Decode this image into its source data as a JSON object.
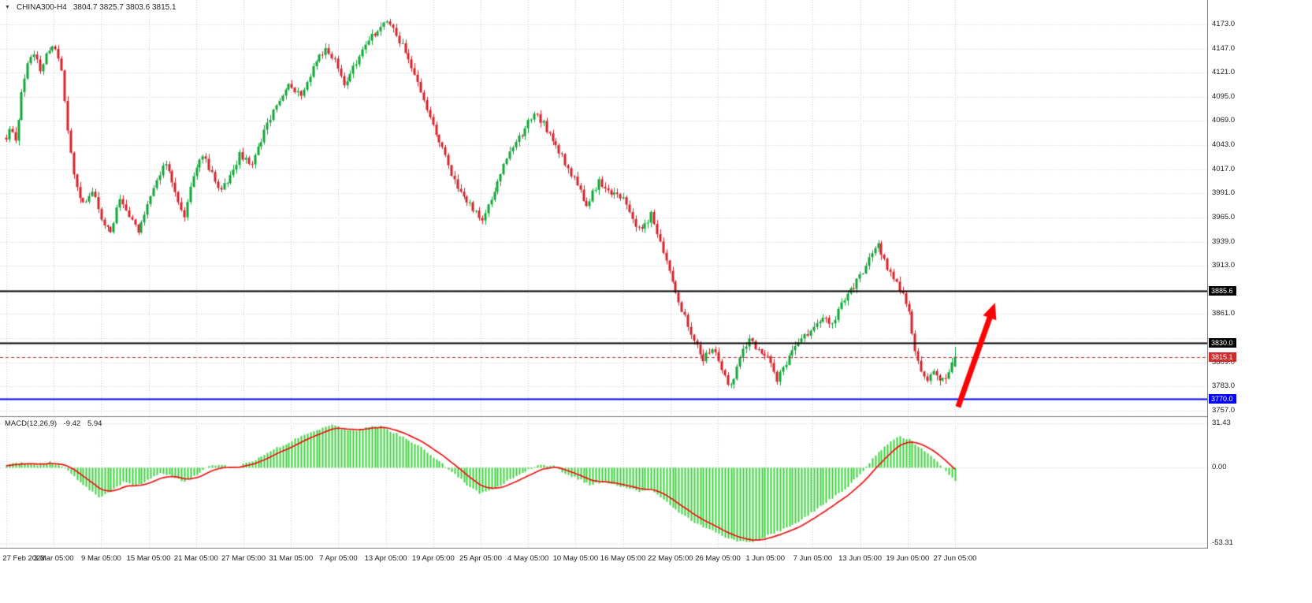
{
  "header": {
    "symbol": "CHINA300-H4",
    "ohlc": "3804.7 3825.7 3803.6 3815.1",
    "dropdown_icon": "▼"
  },
  "macd_panel": {
    "label": "MACD(12,26,9)",
    "main_value": "-9.42",
    "signal_value": "5.94"
  },
  "chart_data": [
    {
      "type": "candlestick",
      "title": "CHINA300-H4",
      "timeframe": "H4",
      "bars": 310,
      "up_color": "#12a538",
      "down_color": "#d4232b",
      "price_axis": {
        "top": 4199.3,
        "bottom": 3751.0,
        "first_gridline": 4173.0,
        "step": 26.0,
        "gridline_count": 17,
        "labels": [
          4173.0,
          4147.0,
          4121.0,
          4095.0,
          4069.0,
          4043.0,
          4017.0,
          3991.0,
          3965.0,
          3939.0,
          3913.0,
          3861.0,
          3809.0,
          3783.0,
          3757.0
        ]
      },
      "time_labels": [
        "27 Feb 2023",
        "3 Mar 05:00",
        "9 Mar 05:00",
        "15 Mar 05:00",
        "21 Mar 05:00",
        "27 Mar 05:00",
        "31 Mar 05:00",
        "7 Apr 05:00",
        "13 Apr 05:00",
        "19 Apr 05:00",
        "25 Apr 05:00",
        "4 May 05:00",
        "10 May 05:00",
        "16 May 05:00",
        "22 May 05:00",
        "26 May 05:00",
        "1 Jun 05:00",
        "7 Jun 05:00",
        "13 Jun 05:00",
        "19 Jun 05:00",
        "27 Jun 05:00"
      ],
      "close_path": [
        [
          0,
          4052
        ],
        [
          1,
          4062
        ],
        [
          3,
          4046
        ],
        [
          5,
          4098
        ],
        [
          7,
          4128
        ],
        [
          9,
          4142
        ],
        [
          11,
          4124
        ],
        [
          13,
          4140
        ],
        [
          16,
          4150
        ],
        [
          18,
          4124
        ],
        [
          20,
          4062
        ],
        [
          22,
          4008
        ],
        [
          25,
          3978
        ],
        [
          28,
          3996
        ],
        [
          31,
          3962
        ],
        [
          34,
          3948
        ],
        [
          37,
          3988
        ],
        [
          40,
          3968
        ],
        [
          43,
          3950
        ],
        [
          46,
          3980
        ],
        [
          49,
          4006
        ],
        [
          52,
          4024
        ],
        [
          55,
          3992
        ],
        [
          58,
          3964
        ],
        [
          61,
          4012
        ],
        [
          64,
          4034
        ],
        [
          67,
          4012
        ],
        [
          70,
          3994
        ],
        [
          73,
          4010
        ],
        [
          76,
          4032
        ],
        [
          80,
          4024
        ],
        [
          84,
          4058
        ],
        [
          88,
          4086
        ],
        [
          92,
          4106
        ],
        [
          96,
          4096
        ],
        [
          100,
          4126
        ],
        [
          104,
          4148
        ],
        [
          107,
          4136
        ],
        [
          110,
          4108
        ],
        [
          113,
          4126
        ],
        [
          117,
          4154
        ],
        [
          121,
          4166
        ],
        [
          124,
          4178
        ],
        [
          127,
          4162
        ],
        [
          130,
          4144
        ],
        [
          133,
          4118
        ],
        [
          136,
          4094
        ],
        [
          139,
          4062
        ],
        [
          142,
          4040
        ],
        [
          145,
          4012
        ],
        [
          148,
          3992
        ],
        [
          151,
          3978
        ],
        [
          155,
          3960
        ],
        [
          158,
          3986
        ],
        [
          161,
          4012
        ],
        [
          164,
          4036
        ],
        [
          168,
          4056
        ],
        [
          172,
          4078
        ],
        [
          175,
          4066
        ],
        [
          178,
          4048
        ],
        [
          182,
          4024
        ],
        [
          186,
          4000
        ],
        [
          189,
          3978
        ],
        [
          193,
          4004
        ],
        [
          197,
          3990
        ],
        [
          201,
          3986
        ],
        [
          204,
          3962
        ],
        [
          207,
          3950
        ],
        [
          210,
          3968
        ],
        [
          213,
          3938
        ],
        [
          216,
          3906
        ],
        [
          218,
          3882
        ],
        [
          221,
          3858
        ],
        [
          224,
          3832
        ],
        [
          227,
          3812
        ],
        [
          230,
          3826
        ],
        [
          233,
          3798
        ],
        [
          236,
          3782
        ],
        [
          239,
          3814
        ],
        [
          242,
          3834
        ],
        [
          245,
          3822
        ],
        [
          248,
          3816
        ],
        [
          251,
          3790
        ],
        [
          254,
          3808
        ],
        [
          257,
          3826
        ],
        [
          260,
          3838
        ],
        [
          263,
          3844
        ],
        [
          266,
          3858
        ],
        [
          269,
          3850
        ],
        [
          272,
          3872
        ],
        [
          275,
          3886
        ],
        [
          279,
          3908
        ],
        [
          282,
          3928
        ],
        [
          284,
          3936
        ],
        [
          286,
          3918
        ],
        [
          289,
          3898
        ],
        [
          292,
          3882
        ],
        [
          294,
          3862
        ],
        [
          296,
          3824
        ],
        [
          298,
          3798
        ],
        [
          300,
          3788
        ],
        [
          302,
          3802
        ],
        [
          304,
          3792
        ],
        [
          306,
          3790
        ],
        [
          308,
          3806
        ],
        [
          309,
          3812
        ]
      ],
      "last_bar": {
        "open": 3804.7,
        "high": 3825.7,
        "low": 3803.6,
        "close": 3815.1
      },
      "levels": [
        {
          "value": 3885.6,
          "color": "#000000",
          "width": 2,
          "label": "3885.6"
        },
        {
          "value": 3830.0,
          "color": "#000000",
          "width": 2,
          "label": "3830.0"
        },
        {
          "value": 3770.0,
          "color": "#0000ff",
          "width": 2,
          "label": "3770.0"
        }
      ],
      "current_price": {
        "value": 3815.1,
        "color": "#d22b2b",
        "label": "3815.1"
      },
      "arrow": {
        "from_bar": 310,
        "from_price": 3761,
        "to_bar": 322,
        "to_price": 3873,
        "color": "#fe0000"
      }
    },
    {
      "type": "macd_histogram",
      "label": "MACD(12,26,9)",
      "histogram_color": "#3ad33a",
      "signal_color": "#ef1212",
      "signal_ema_period": 9,
      "y_ticks": [
        31.43,
        0.0,
        -53.31
      ],
      "scale": {
        "top": 35.4,
        "bottom": -57.3
      },
      "last_values": {
        "main": -9.42,
        "signal": 5.94
      },
      "histogram_path": [
        [
          0,
          2
        ],
        [
          5,
          3.5
        ],
        [
          10,
          2
        ],
        [
          14,
          4
        ],
        [
          18,
          1
        ],
        [
          22,
          -6
        ],
        [
          26,
          -14
        ],
        [
          30,
          -21
        ],
        [
          34,
          -17
        ],
        [
          38,
          -10
        ],
        [
          42,
          -13
        ],
        [
          46,
          -9
        ],
        [
          50,
          -4
        ],
        [
          54,
          -6
        ],
        [
          58,
          -10
        ],
        [
          62,
          -5
        ],
        [
          66,
          1
        ],
        [
          70,
          2
        ],
        [
          74,
          0
        ],
        [
          78,
          3
        ],
        [
          82,
          7
        ],
        [
          86,
          12
        ],
        [
          90,
          16
        ],
        [
          94,
          20
        ],
        [
          98,
          24
        ],
        [
          102,
          27
        ],
        [
          106,
          30
        ],
        [
          110,
          27
        ],
        [
          114,
          26
        ],
        [
          118,
          29
        ],
        [
          122,
          29
        ],
        [
          126,
          25
        ],
        [
          130,
          21
        ],
        [
          134,
          16
        ],
        [
          138,
          9
        ],
        [
          142,
          3
        ],
        [
          146,
          -5
        ],
        [
          150,
          -12
        ],
        [
          154,
          -18
        ],
        [
          158,
          -16
        ],
        [
          162,
          -11
        ],
        [
          166,
          -6
        ],
        [
          170,
          -1
        ],
        [
          174,
          2
        ],
        [
          178,
          1
        ],
        [
          182,
          -4
        ],
        [
          186,
          -8
        ],
        [
          190,
          -12
        ],
        [
          194,
          -10
        ],
        [
          198,
          -12
        ],
        [
          202,
          -14
        ],
        [
          206,
          -17
        ],
        [
          210,
          -16
        ],
        [
          214,
          -22
        ],
        [
          218,
          -30
        ],
        [
          222,
          -36
        ],
        [
          226,
          -41
        ],
        [
          230,
          -44
        ],
        [
          234,
          -49
        ],
        [
          238,
          -52
        ],
        [
          242,
          -53
        ],
        [
          246,
          -50
        ],
        [
          250,
          -46
        ],
        [
          254,
          -43
        ],
        [
          258,
          -38
        ],
        [
          262,
          -32
        ],
        [
          266,
          -26
        ],
        [
          270,
          -20
        ],
        [
          274,
          -13
        ],
        [
          278,
          -5
        ],
        [
          282,
          6
        ],
        [
          285,
          13
        ],
        [
          288,
          19
        ],
        [
          291,
          22
        ],
        [
          294,
          20
        ],
        [
          297,
          15
        ],
        [
          300,
          10
        ],
        [
          303,
          4
        ],
        [
          306,
          -3
        ],
        [
          309,
          -9.42
        ]
      ]
    }
  ],
  "grid_color": "#cccccc",
  "separator_color": "#7f7f7f",
  "background_color": "#ffffff"
}
